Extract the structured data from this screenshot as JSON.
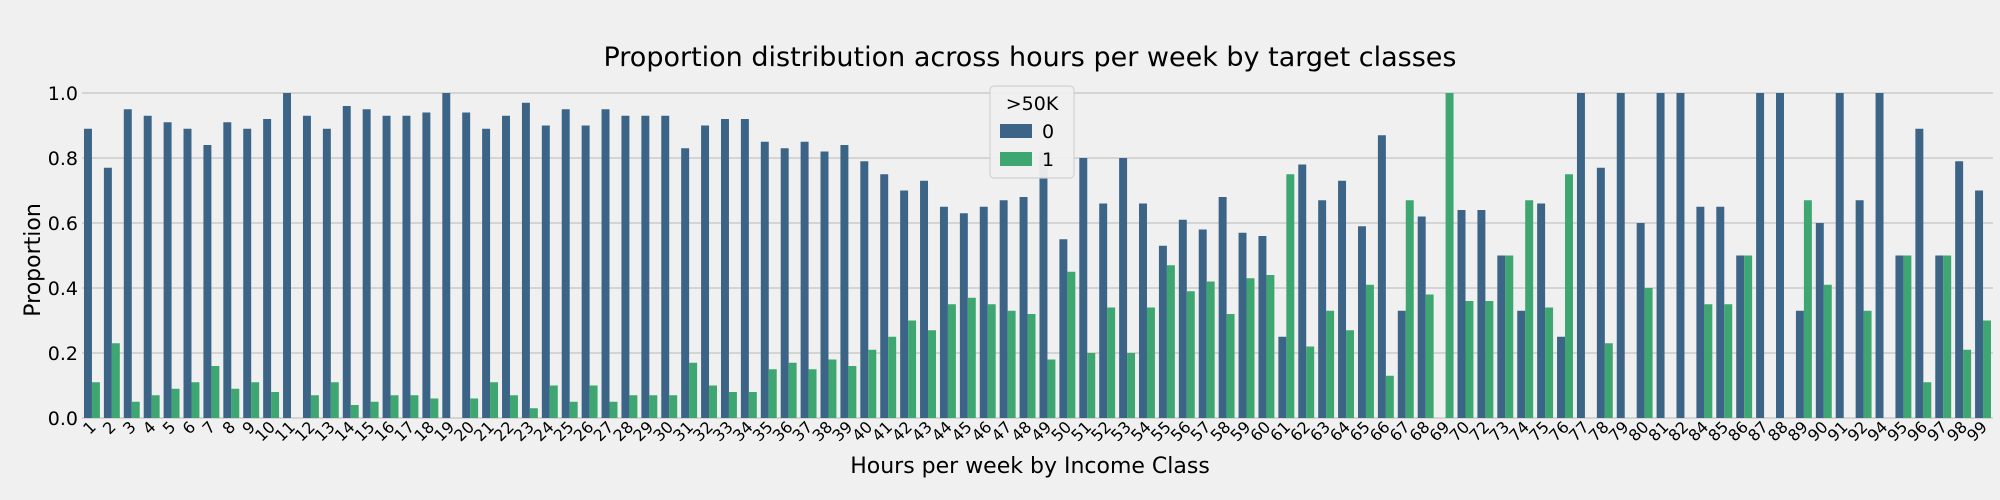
{
  "chart_data": {
    "type": "bar",
    "title": "Proportion distribution across hours per week by target classes",
    "xlabel": "Hours per week by Income Class",
    "ylabel": "Proportion",
    "ylim": [
      0,
      1.0
    ],
    "yticks": [
      "0.0",
      "0.2",
      "0.4",
      "0.6",
      "0.8",
      "1.0"
    ],
    "grid": true,
    "legend": {
      "title": ">50K",
      "placement": "top-center"
    },
    "categories": [
      "1",
      "2",
      "3",
      "4",
      "5",
      "6",
      "7",
      "8",
      "9",
      "10",
      "11",
      "12",
      "13",
      "14",
      "15",
      "16",
      "17",
      "18",
      "19",
      "20",
      "21",
      "22",
      "23",
      "24",
      "25",
      "26",
      "27",
      "28",
      "29",
      "30",
      "31",
      "32",
      "33",
      "34",
      "35",
      "36",
      "37",
      "38",
      "39",
      "40",
      "41",
      "42",
      "43",
      "44",
      "45",
      "46",
      "47",
      "48",
      "49",
      "50",
      "51",
      "52",
      "53",
      "54",
      "55",
      "56",
      "57",
      "58",
      "59",
      "60",
      "61",
      "62",
      "63",
      "64",
      "65",
      "66",
      "67",
      "68",
      "69",
      "70",
      "72",
      "73",
      "74",
      "75",
      "76",
      "77",
      "78",
      "79",
      "80",
      "81",
      "82",
      "84",
      "85",
      "86",
      "87",
      "88",
      "89",
      "90",
      "91",
      "92",
      "94",
      "95",
      "96",
      "97",
      "98",
      "99"
    ],
    "series": [
      {
        "name": "0",
        "color": "#3b6486",
        "values": [
          0.89,
          0.77,
          0.95,
          0.93,
          0.91,
          0.89,
          0.84,
          0.91,
          0.89,
          0.92,
          1.0,
          0.93,
          0.89,
          0.96,
          0.95,
          0.93,
          0.93,
          0.94,
          1.0,
          0.94,
          0.89,
          0.93,
          0.97,
          0.9,
          0.95,
          0.9,
          0.95,
          0.93,
          0.93,
          0.93,
          0.83,
          0.9,
          0.92,
          0.92,
          0.85,
          0.83,
          0.85,
          0.82,
          0.84,
          0.79,
          0.75,
          0.7,
          0.73,
          0.65,
          0.63,
          0.65,
          0.67,
          0.68,
          0.82,
          0.55,
          0.8,
          0.66,
          0.8,
          0.66,
          0.53,
          0.61,
          0.58,
          0.68,
          0.57,
          0.56,
          0.25,
          0.78,
          0.67,
          0.73,
          0.59,
          0.87,
          0.33,
          0.62,
          0.0,
          0.64,
          0.64,
          0.5,
          0.33,
          0.66,
          0.25,
          1.0,
          0.77,
          1.0,
          0.6,
          1.0,
          1.0,
          0.65,
          0.65,
          0.5,
          1.0,
          1.0,
          0.33,
          0.6,
          1.0,
          0.67,
          1.0,
          0.5,
          0.89,
          0.5,
          0.79,
          0.7
        ]
      },
      {
        "name": "1",
        "color": "#3ea670",
        "values": [
          0.11,
          0.23,
          0.05,
          0.07,
          0.09,
          0.11,
          0.16,
          0.09,
          0.11,
          0.08,
          0.0,
          0.07,
          0.11,
          0.04,
          0.05,
          0.07,
          0.07,
          0.06,
          0.0,
          0.06,
          0.11,
          0.07,
          0.03,
          0.1,
          0.05,
          0.1,
          0.05,
          0.07,
          0.07,
          0.07,
          0.17,
          0.1,
          0.08,
          0.08,
          0.15,
          0.17,
          0.15,
          0.18,
          0.16,
          0.21,
          0.25,
          0.3,
          0.27,
          0.35,
          0.37,
          0.35,
          0.33,
          0.32,
          0.18,
          0.45,
          0.2,
          0.34,
          0.2,
          0.34,
          0.47,
          0.39,
          0.42,
          0.32,
          0.43,
          0.44,
          0.75,
          0.22,
          0.33,
          0.27,
          0.41,
          0.13,
          0.67,
          0.38,
          1.0,
          0.36,
          0.36,
          0.5,
          0.67,
          0.34,
          0.75,
          0.0,
          0.23,
          0.0,
          0.4,
          0.0,
          0.0,
          0.35,
          0.35,
          0.5,
          0.0,
          0.0,
          0.67,
          0.41,
          0.0,
          0.33,
          0.0,
          0.5,
          0.11,
          0.5,
          0.21,
          0.3
        ]
      }
    ]
  }
}
